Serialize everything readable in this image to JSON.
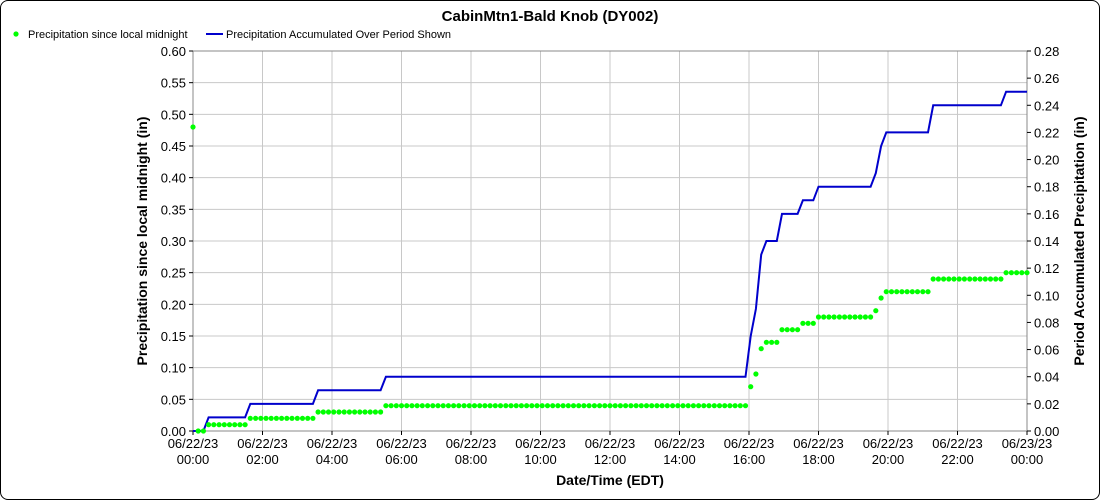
{
  "chart_data": {
    "type": "line",
    "title": "CabinMtn1-Bald Knob (DY002)",
    "xlabel": "Date/Time (EDT)",
    "ylabel_left": "Precipitation since local midnight (in)",
    "ylabel_right": "Period Accumulated Precipitation (in)",
    "x_range_hours": [
      0,
      24
    ],
    "ylim_left": [
      0,
      0.6
    ],
    "ylim_right": [
      0,
      0.28
    ],
    "yticks_left": [
      "0.00",
      "0.05",
      "0.10",
      "0.15",
      "0.20",
      "0.25",
      "0.30",
      "0.35",
      "0.40",
      "0.45",
      "0.50",
      "0.55",
      "0.60"
    ],
    "yticks_right": [
      "0.00",
      "0.02",
      "0.04",
      "0.06",
      "0.08",
      "0.10",
      "0.12",
      "0.14",
      "0.16",
      "0.18",
      "0.20",
      "0.22",
      "0.24",
      "0.26",
      "0.28"
    ],
    "xtick_labels": [
      [
        "06/22/23",
        "00:00"
      ],
      [
        "06/22/23",
        "02:00"
      ],
      [
        "06/22/23",
        "04:00"
      ],
      [
        "06/22/23",
        "06:00"
      ],
      [
        "06/22/23",
        "08:00"
      ],
      [
        "06/22/23",
        "10:00"
      ],
      [
        "06/22/23",
        "12:00"
      ],
      [
        "06/22/23",
        "14:00"
      ],
      [
        "06/22/23",
        "16:00"
      ],
      [
        "06/22/23",
        "18:00"
      ],
      [
        "06/22/23",
        "20:00"
      ],
      [
        "06/22/23",
        "22:00"
      ],
      [
        "06/23/23",
        "00:00"
      ]
    ],
    "grid": true,
    "legend_position": "top-left",
    "colors": {
      "points": "#00ff00",
      "line": "#0000cc",
      "grid": "#c8c8c8"
    },
    "series": [
      {
        "name": "Precipitation since local midnight",
        "axis": "left",
        "style": "points",
        "points": [
          [
            0.0,
            0.48
          ],
          [
            0.15,
            0.0
          ],
          [
            0.3,
            0.0
          ],
          [
            0.45,
            0.01
          ],
          {
            "range": [
              0.6,
              1.5
            ],
            "value": 0.01
          },
          {
            "range": [
              1.65,
              3.45
            ],
            "value": 0.02
          },
          {
            "range": [
              3.6,
              5.4
            ],
            "value": 0.03
          },
          {
            "range": [
              5.55,
              15.9
            ],
            "value": 0.04
          },
          [
            16.05,
            0.07
          ],
          [
            16.2,
            0.09
          ],
          [
            16.35,
            0.13
          ],
          {
            "range": [
              16.5,
              16.8
            ],
            "value": 0.14
          },
          {
            "range": [
              16.95,
              17.4
            ],
            "value": 0.16
          },
          {
            "range": [
              17.55,
              17.85
            ],
            "value": 0.17
          },
          {
            "range": [
              18.0,
              19.5
            ],
            "value": 0.18
          },
          [
            19.65,
            0.19
          ],
          [
            19.8,
            0.21
          ],
          {
            "range": [
              19.95,
              21.15
            ],
            "value": 0.22
          },
          {
            "range": [
              21.3,
              23.25
            ],
            "value": 0.24
          },
          {
            "range": [
              23.4,
              24.0
            ],
            "value": 0.25
          }
        ]
      },
      {
        "name": "Precipitation Accumulated Over Period Shown",
        "axis": "right",
        "style": "line",
        "points": [
          [
            0.0,
            0.0
          ],
          [
            0.3,
            0.0
          ],
          [
            0.45,
            0.01
          ],
          [
            1.5,
            0.01
          ],
          [
            1.65,
            0.02
          ],
          [
            3.45,
            0.02
          ],
          [
            3.6,
            0.03
          ],
          [
            5.4,
            0.03
          ],
          [
            5.55,
            0.04
          ],
          [
            15.9,
            0.04
          ],
          [
            16.05,
            0.07
          ],
          [
            16.2,
            0.09
          ],
          [
            16.35,
            0.13
          ],
          [
            16.5,
            0.14
          ],
          [
            16.8,
            0.14
          ],
          [
            16.95,
            0.16
          ],
          [
            17.4,
            0.16
          ],
          [
            17.55,
            0.17
          ],
          [
            17.85,
            0.17
          ],
          [
            18.0,
            0.18
          ],
          [
            19.5,
            0.18
          ],
          [
            19.65,
            0.19
          ],
          [
            19.8,
            0.21
          ],
          [
            19.95,
            0.22
          ],
          [
            21.15,
            0.22
          ],
          [
            21.3,
            0.24
          ],
          [
            23.25,
            0.24
          ],
          [
            23.4,
            0.25
          ],
          [
            24.0,
            0.25
          ]
        ]
      }
    ]
  }
}
